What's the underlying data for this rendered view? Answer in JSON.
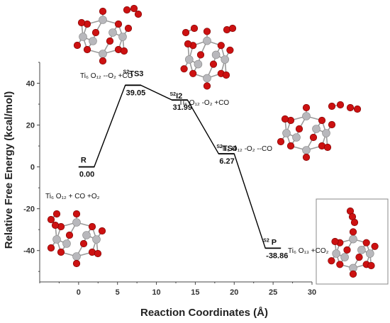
{
  "chart_data": {
    "type": "line",
    "title": "",
    "xlabel": "Reaction Coordinates (Å)",
    "ylabel": "Relative Free Energy (kcal/mol)",
    "xlim": [
      -5,
      30
    ],
    "ylim": [
      -55,
      50
    ],
    "xticks": [
      0,
      5,
      10,
      15,
      20,
      25,
      30
    ],
    "yticks": [
      -40,
      -20,
      0,
      20,
      40
    ],
    "grid": false,
    "levels": [
      {
        "x": [
          0,
          2
        ],
        "y": 0.0,
        "name": "R",
        "sup": "",
        "value": "0.00"
      },
      {
        "x": [
          6,
          8
        ],
        "y": 39.05,
        "name": "TS3",
        "sup": "S2",
        "value": "39.05"
      },
      {
        "x": [
          12,
          14
        ],
        "y": 31.99,
        "name": "I2",
        "sup": "S2",
        "value": "31.99"
      },
      {
        "x": [
          18,
          20
        ],
        "y": 6.27,
        "name": "TS4",
        "sup": "S2",
        "value": "6.27"
      },
      {
        "x": [
          24,
          26
        ],
        "y": -38.86,
        "name": "P",
        "sup": "S2",
        "value": "-38.86"
      }
    ],
    "species": [
      {
        "id": "r",
        "text": "Ti₆ O₁₂ + CO +O₂"
      },
      {
        "id": "ts3",
        "text": "Ti₆ O₁₂ --O₂ +CO"
      },
      {
        "id": "i2",
        "text": "Ti₆ O₁₂ -O₂ +CO"
      },
      {
        "id": "ts4",
        "text": "Ti₆ O₁₂ -O₂ --CO"
      },
      {
        "id": "p",
        "text": "Ti₆ O₁₃ +CO₂"
      }
    ],
    "colors": {
      "oxygen": "#cc1111",
      "titanium": "#b8b8bc",
      "bond": "#9a9a9a",
      "line": "#000000"
    }
  }
}
